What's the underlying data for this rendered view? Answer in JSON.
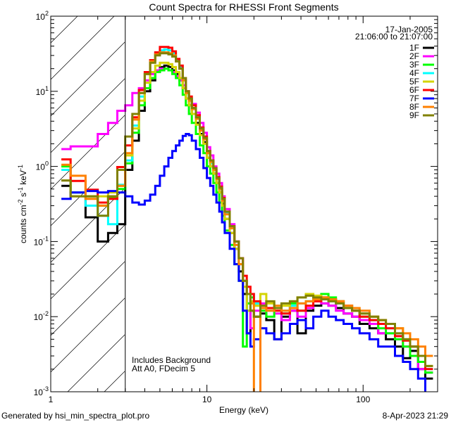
{
  "chart_data": {
    "type": "line",
    "title": "Count Spectra for RHESSI Front Segments",
    "xlabel": "Energy (keV)",
    "ylabel_parts": [
      "counts cm",
      "-2",
      " s",
      "-1",
      " keV",
      "-1"
    ],
    "xscale": "log",
    "yscale": "log",
    "xlim": [
      1,
      300
    ],
    "ylim": [
      0.001,
      100
    ],
    "x_ticks": [
      {
        "value": 1,
        "label": "1"
      },
      {
        "value": 10,
        "label": "10"
      },
      {
        "value": 100,
        "label": "100"
      }
    ],
    "y_ticks": [
      {
        "value": 0.001,
        "base": "10",
        "exp": "-3"
      },
      {
        "value": 0.01,
        "base": "10",
        "exp": "-2"
      },
      {
        "value": 0.1,
        "base": "10",
        "exp": "-1"
      },
      {
        "value": 1,
        "base": "10",
        "exp": "0"
      },
      {
        "value": 10,
        "base": "10",
        "exp": "1"
      },
      {
        "value": 100,
        "base": "10",
        "exp": "2"
      }
    ],
    "hatched_region_keV": [
      1,
      3
    ],
    "legend_position": "top-right",
    "legend_header": [
      "17-Jan-2005",
      "21:06:00 to 21:07:00"
    ],
    "annotations": [
      "Includes Background",
      "Att A0, FDecim 5"
    ],
    "energy_edges": [
      1.17,
      1.34,
      1.67,
      2.0,
      2.33,
      2.67,
      3.0,
      3.33,
      3.67,
      4.0,
      4.33,
      4.67,
      5.0,
      5.33,
      5.67,
      6.0,
      6.33,
      6.67,
      7.0,
      7.33,
      7.67,
      8.0,
      8.5,
      9.0,
      9.5,
      10,
      10.5,
      11,
      11.5,
      12,
      12.5,
      13,
      14,
      15,
      16,
      17,
      18,
      19,
      20,
      22,
      24,
      27,
      30,
      34,
      38,
      43,
      48,
      54,
      60,
      67,
      75,
      85,
      95,
      110,
      125,
      140,
      160,
      180,
      200,
      225,
      250,
      280
    ],
    "series": [
      {
        "name": "1F",
        "color": "#000000",
        "values": [
          0.55,
          0.45,
          0.21,
          0.1,
          0.13,
          0.17,
          0.9,
          2.2,
          5.5,
          10,
          14,
          18,
          21,
          22,
          21,
          19,
          17,
          14,
          11,
          8,
          6.5,
          5,
          3.8,
          2.7,
          2.1,
          1.3,
          1.0,
          0.8,
          0.6,
          0.45,
          0.32,
          0.2,
          0.13,
          0.08,
          0.04,
          0.02,
          0.006,
          0.012,
          0.01,
          0.011,
          0.009,
          0.005,
          0.01,
          0.012,
          0.006,
          0.012,
          0.014,
          0.015,
          0.014,
          0.013,
          0.011,
          0.01,
          0.008,
          0.007,
          0.006,
          0.005,
          0.004,
          0.0028,
          0.0035,
          0.002,
          0.0015
        ]
      },
      {
        "name": "2F",
        "color": "#ff00ff",
        "values": [
          1.7,
          1.85,
          1.85,
          2.7,
          3.8,
          5.5,
          6.5,
          9.5,
          11,
          14,
          17,
          19,
          20,
          20,
          19,
          18,
          16,
          14,
          12,
          10,
          8,
          6.8,
          5.2,
          3.8,
          2.8,
          1.8,
          1.4,
          1.0,
          0.8,
          0.6,
          0.4,
          0.27,
          0.17,
          0.1,
          0.06,
          0.03,
          0.015,
          0.007,
          0.012,
          0.015,
          0.013,
          0.011,
          0.009,
          0.012,
          0.01,
          0.013,
          0.016,
          0.015,
          0.014,
          0.012,
          0.011,
          0.01,
          0.009,
          0.008,
          0.006,
          0.006,
          0.005,
          0.004,
          0.003,
          0.002,
          0.0018
        ]
      },
      {
        "name": "3F",
        "color": "#00ff00",
        "values": [
          1.0,
          0.45,
          0.4,
          0.3,
          0.38,
          0.5,
          1.1,
          2.8,
          6.5,
          11,
          15,
          18,
          19,
          20,
          19,
          17,
          15,
          12,
          9,
          6.5,
          5,
          3.8,
          2.7,
          1.9,
          1.5,
          1.0,
          0.8,
          0.6,
          0.45,
          0.33,
          0.22,
          0.14,
          0.09,
          0.05,
          0.03,
          0.004,
          0.015,
          0.018,
          0.014,
          0.012,
          0.01,
          0.013,
          0.011,
          0.015,
          0.012,
          0.016,
          0.018,
          0.02,
          0.018,
          0.016,
          0.014,
          0.012,
          0.01,
          0.009,
          0.007,
          0.006,
          0.005,
          0.004,
          0.003,
          0.0025,
          0.0018
        ]
      },
      {
        "name": "4F",
        "color": "#00ffff",
        "values": [
          0.9,
          0.45,
          0.3,
          0.22,
          0.17,
          0.57,
          1.2,
          3.5,
          8.5,
          17,
          26,
          32,
          35,
          36,
          35,
          32,
          26,
          21,
          14,
          9.5,
          8,
          6,
          4.4,
          3.0,
          2.3,
          1.5,
          1.1,
          0.9,
          0.68,
          0.5,
          0.36,
          0.24,
          0.15,
          0.09,
          0.05,
          0.03,
          0.012,
          0.02,
          0.015,
          0.013,
          0.012,
          0.014,
          0.012,
          0.014,
          0.015,
          0.016,
          0.017,
          0.018,
          0.016,
          0.015,
          0.014,
          0.012,
          0.011,
          0.009,
          0.008,
          0.007,
          0.006,
          0.005,
          0.004,
          0.003,
          0.002
        ]
      },
      {
        "name": "5F",
        "color": "#d4d400",
        "values": [
          0.65,
          0.4,
          0.4,
          0.4,
          0.45,
          0.55,
          1.4,
          3.2,
          7.5,
          13,
          18,
          22,
          24,
          24,
          23,
          21,
          18,
          15,
          11,
          8,
          6.5,
          5,
          3.6,
          2.6,
          2,
          1.3,
          1,
          0.8,
          0.6,
          0.45,
          0.3,
          0.2,
          0.13,
          0.08,
          0.05,
          0.025,
          0.012,
          0.016,
          0.014,
          0.02,
          0.015,
          0.012,
          0.014,
          0.016,
          0.018,
          0.02,
          0.019,
          0.018,
          0.017,
          0.016,
          0.014,
          0.012,
          0.011,
          0.01,
          0.009,
          0.008,
          0.007,
          0.005,
          0.004,
          0.003,
          0.0022
        ]
      },
      {
        "name": "6F",
        "color": "#ff0000",
        "values": [
          1.24,
          0.64,
          0.49,
          0.33,
          0.37,
          0.98,
          1.9,
          4.5,
          10.4,
          18,
          26,
          33,
          39,
          39,
          38,
          34,
          27,
          22,
          15,
          10,
          8.5,
          6.5,
          4.8,
          3.3,
          2.5,
          1.6,
          1.2,
          0.95,
          0.72,
          0.54,
          0.38,
          0.25,
          0.16,
          0.1,
          0.06,
          0.035,
          0.025,
          0.02,
          0.016,
          0.014,
          0.013,
          0.012,
          0.011,
          0.013,
          0.012,
          0.014,
          0.016,
          0.018,
          0.017,
          0.016,
          0.014,
          0.012,
          0.01,
          0.009,
          0.008,
          0.007,
          0.0055,
          0.0048,
          0.004,
          0.003,
          0.002
        ]
      },
      {
        "name": "7F",
        "color": "#0000ff",
        "values": [
          0.37,
          0.45,
          0.47,
          0.45,
          0.47,
          0.45,
          0.4,
          0.33,
          0.31,
          0.35,
          0.42,
          0.55,
          0.75,
          1.0,
          1.3,
          1.6,
          1.9,
          2.2,
          2.55,
          2.7,
          2.6,
          2.2,
          1.7,
          1.3,
          0.95,
          0.7,
          0.55,
          0.42,
          0.33,
          0.25,
          0.18,
          0.13,
          0.08,
          0.05,
          0.03,
          0.012,
          0.006,
          0.004,
          0.005,
          0.007,
          0.006,
          0.005,
          0.006,
          0.008,
          0.009,
          0.007,
          0.01,
          0.012,
          0.01,
          0.009,
          0.008,
          0.007,
          0.006,
          0.005,
          0.004,
          0.004,
          0.003,
          0.0025,
          0.002,
          0.0015,
          0.0009
        ]
      },
      {
        "name": "8F",
        "color": "#ff8000",
        "values": [
          1.05,
          0.75,
          0.37,
          0.3,
          0.4,
          0.55,
          1.5,
          4.2,
          9.5,
          17,
          25,
          31,
          33,
          33,
          32,
          30,
          25,
          20,
          14,
          9.5,
          7.5,
          5.8,
          4.3,
          3,
          2.3,
          1.5,
          1.15,
          0.9,
          0.68,
          0.5,
          0.35,
          0.23,
          0.15,
          0.09,
          0.05,
          0.03,
          0.02,
          0.015,
          0.0005,
          0.013,
          0.012,
          0.014,
          0.012,
          0.013,
          0.015,
          0.016,
          0.017,
          0.018,
          0.017,
          0.016,
          0.014,
          0.013,
          0.012,
          0.01,
          0.009,
          0.008,
          0.007,
          0.006,
          0.005,
          0.004,
          0.003
        ]
      },
      {
        "name": "9F",
        "color": "#808000",
        "values": [
          0.65,
          0.4,
          0.4,
          0.22,
          0.4,
          0.9,
          2.5,
          5,
          9.5,
          17,
          24,
          30,
          32,
          32,
          31,
          29,
          25,
          20,
          15,
          10,
          8,
          6,
          4.5,
          3.2,
          2.4,
          1.6,
          1.2,
          0.95,
          0.7,
          0.52,
          0.37,
          0.25,
          0.16,
          0.1,
          0.06,
          0.03,
          0.02,
          0.012,
          0.01,
          0.014,
          0.016,
          0.013,
          0.015,
          0.016,
          0.018,
          0.019,
          0.018,
          0.017,
          0.016,
          0.015,
          0.013,
          0.012,
          0.011,
          0.01,
          0.009,
          0.008,
          0.006,
          0.005,
          0.004,
          0.003,
          0.0022
        ]
      }
    ]
  },
  "footer": {
    "generated_by": "Generated by hsi_min_spectra_plot.pro",
    "timestamp": "8-Apr-2023 21:29"
  }
}
